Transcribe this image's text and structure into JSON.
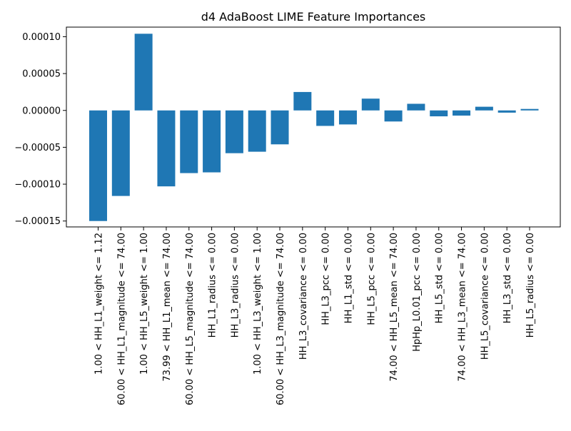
{
  "chart_data": {
    "type": "bar",
    "title": "d4 AdaBoost LIME Feature Importances",
    "xlabel": "",
    "ylabel": "",
    "ylim": [
      -0.000158,
      0.000113
    ],
    "yticks": [
      -0.00015,
      -0.0001,
      -5e-05,
      0.0,
      5e-05,
      0.0001
    ],
    "ytick_labels": [
      "−0.00015",
      "−0.00010",
      "−0.00005",
      "0.00000",
      "0.00005",
      "0.00010"
    ],
    "grid": false,
    "bar_color": "#1f77b4",
    "categories": [
      "1.00 < HH_L1_weight <= 1.12",
      "60.00 < HH_L1_magnitude <= 74.00",
      "1.00 < HH_L5_weight <= 1.00",
      "73.99 < HH_L1_mean <= 74.00",
      "60.00 < HH_L5_magnitude <= 74.00",
      "HH_L1_radius <= 0.00",
      "HH_L3_radius <= 0.00",
      "1.00 < HH_L3_weight <= 1.00",
      "60.00 < HH_L3_magnitude <= 74.00",
      "HH_L3_covariance <= 0.00",
      "HH_L3_pcc <= 0.00",
      "HH_L1_std <= 0.00",
      "HH_L5_pcc <= 0.00",
      "74.00 < HH_L5_mean <= 74.00",
      "HpHp_L0.01_pcc <= 0.00",
      "HH_L5_std <= 0.00",
      "74.00 < HH_L3_mean <= 74.00",
      "HH_L5_covariance <= 0.00",
      "HH_L3_std <= 0.00",
      "HH_L5_radius <= 0.00"
    ],
    "values": [
      -0.00015,
      -0.000116,
      0.000104,
      -0.000103,
      -8.5e-05,
      -8.4e-05,
      -5.8e-05,
      -5.6e-05,
      -4.6e-05,
      2.5e-05,
      -2.1e-05,
      -1.9e-05,
      1.6e-05,
      -1.5e-05,
      9e-06,
      -8e-06,
      -7e-06,
      5e-06,
      -3e-06,
      2e-06
    ]
  }
}
